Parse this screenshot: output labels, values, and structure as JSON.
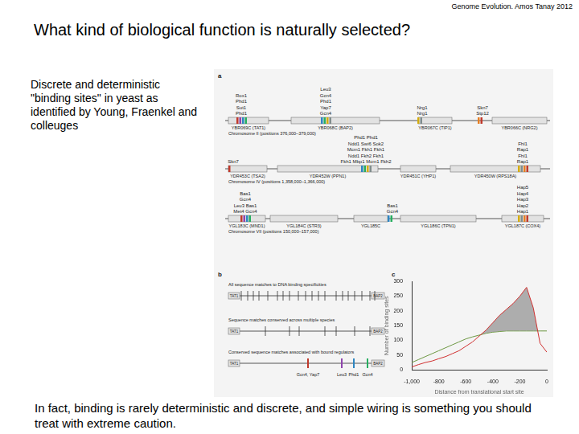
{
  "header": "Genome Evolution. Amos Tanay 2012",
  "title": "What kind of biological function is naturally selected?",
  "description": "Discrete and deterministic \"binding sites\" in yeast as identified by Young, Fraenkel and colleuges",
  "footer": "In fact, binding is rarely deterministic and discrete, and simple wiring is something you should treat with extreme caution.",
  "panel_a": {
    "letter": "a",
    "rows": [
      {
        "chromosome": "Chromosome II (positions 376,000–379,000)",
        "genes": [
          "YBR069C (TAT1)",
          "YBR068C (BAP2)",
          "YBR067C (TIP1)",
          "YBR066C (NRG2)"
        ],
        "site_groups": [
          [
            "Rox1",
            "Phd1",
            "Sut1",
            "Phd1"
          ],
          [
            "Leu3",
            "Gcn4",
            "Phd1",
            "Yap7",
            "Gcn4"
          ],
          [
            "Nrg1",
            "Nrg1"
          ],
          [
            "Skn7",
            "Stp12"
          ]
        ]
      },
      {
        "chromosome": "Chromosome IV (positions 1,358,000–1,366,000)",
        "genes": [
          "YDR453C (TSA2)",
          "YDR452W (PPN1)",
          "YDR451C (YHP1)",
          "YDR450W (RPS18A)"
        ],
        "site_groups": [
          [
            "Skn7"
          ],
          [
            "Phd1 Phd1",
            "Ndd1 Swi6 Sok2",
            "Mcm1 Fkh1 Fkh1",
            "Ndd1 Fkh2 Fkh1",
            "Fkh1 Mbp1 Mcm1 Fkh2"
          ],
          [
            "Fhl1",
            "Rap1",
            "Fhl1",
            "Rap1"
          ]
        ]
      },
      {
        "chromosome": "Chromosome VII (positions 150,000–157,000)",
        "genes": [
          "YGL183C (MND1)",
          "YGL184C (STR3)",
          "YGL185C",
          "YGL186C (TPN1)",
          "YGL187C (COX4)"
        ],
        "site_groups": [
          [
            "Bas1",
            "Gcn4",
            "Leu3 Bas1",
            "Met4 Gcn4"
          ],
          [
            "Bas1",
            "Gcn4"
          ],
          [
            "Hap5",
            "Hap4",
            "Hap3",
            "Hap2",
            "Hap1"
          ]
        ]
      }
    ]
  },
  "panel_b": {
    "letter": "b",
    "left_gene": "TAT1",
    "right_gene": "BAP2",
    "tracks": [
      "All sequence matches to DNA binding specificities",
      "Sequence matches conserved across multiple species",
      "Conserved sequence matches associated with bound regulators"
    ],
    "bound_regulators": [
      "Gcn4, Yap7",
      "Leu3",
      "Phd1",
      "Gcn4"
    ]
  },
  "panel_c_letter": "c",
  "chart_data": {
    "type": "line",
    "x_label": "Distance from translational start site",
    "y_label": "Number of binding sites",
    "x": [
      -1000,
      -950,
      -900,
      -850,
      -800,
      -750,
      -700,
      -650,
      -600,
      -550,
      -500,
      -450,
      -400,
      -350,
      -300,
      -250,
      -200,
      -150,
      -100,
      -50,
      0
    ],
    "series": [
      {
        "color": "#d03030",
        "values": [
          10,
          18,
          25,
          30,
          38,
          45,
          55,
          65,
          80,
          95,
          115,
          135,
          160,
          185,
          205,
          225,
          250,
          280,
          210,
          90,
          60
        ]
      },
      {
        "color": "#6a9a3a",
        "values": [
          25,
          35,
          45,
          55,
          65,
          75,
          85,
          95,
          105,
          112,
          118,
          124,
          128,
          130,
          132,
          132,
          132,
          132,
          132,
          132,
          132
        ]
      }
    ],
    "xlim": [
      -1000,
      0
    ],
    "xticks": [
      {
        "value": -1000,
        "label": "-1,000"
      },
      -800,
      -600,
      -400,
      -200,
      0
    ],
    "ylim": [
      0,
      300
    ],
    "yticks": [
      0,
      50,
      100,
      150,
      200,
      250,
      300
    ],
    "grid": false
  }
}
